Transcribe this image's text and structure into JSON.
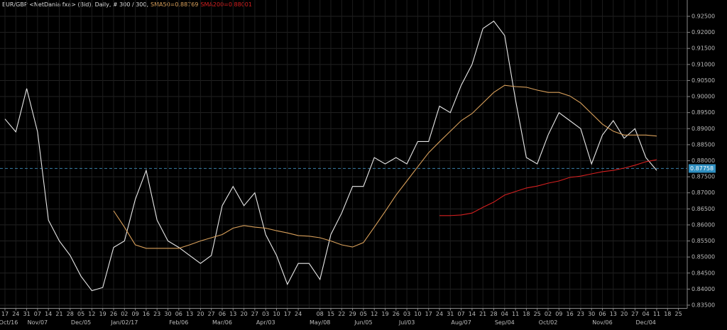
{
  "chart_data": {
    "type": "line",
    "title": "EUR/GBP <NetDania fxa> (Bid), Daily, # 300 / 300,",
    "categories": [
      "17",
      "24",
      "31",
      "07",
      "14",
      "21",
      "28",
      "05",
      "12",
      "19",
      "26",
      "02",
      "09",
      "16",
      "23",
      "30",
      "06",
      "13",
      "20",
      "27",
      "06",
      "13",
      "20",
      "27",
      "03",
      "10",
      "17",
      "24",
      null,
      "08",
      "15",
      "22",
      "29",
      "05",
      "12",
      "19",
      "26",
      "03",
      "10",
      "17",
      "24",
      "31",
      "07",
      "14",
      "21",
      "28",
      "04",
      "11",
      "18",
      "25",
      "02",
      "09",
      "16",
      "23",
      "30",
      "06",
      "13",
      "20",
      "27",
      "04",
      "11",
      "18",
      "25"
    ],
    "month_labels": [
      "Oct/16",
      null,
      null,
      "Nov/07",
      null,
      null,
      null,
      "Dec/05",
      null,
      null,
      null,
      "Jan/02/17",
      null,
      null,
      null,
      null,
      "Feb/06",
      null,
      null,
      null,
      "Mar/06",
      null,
      null,
      null,
      "Apr/03",
      null,
      null,
      null,
      null,
      "May/08",
      null,
      null,
      null,
      "Jun/05",
      null,
      null,
      null,
      "Jul/03",
      null,
      null,
      null,
      null,
      "Aug/07",
      null,
      null,
      null,
      "Sep/04",
      null,
      null,
      null,
      "Oct/02",
      null,
      null,
      null,
      null,
      "Nov/06",
      null,
      null,
      null,
      "Dec/04",
      null,
      null,
      null
    ],
    "series": [
      {
        "color": "#e8e8e8",
        "values": [
          0.893,
          0.889,
          0.9025,
          0.889,
          0.8615,
          0.855,
          0.8505,
          0.844,
          0.8395,
          0.8405,
          0.853,
          0.855,
          0.868,
          0.877,
          0.8615,
          0.855,
          0.853,
          0.8505,
          0.848,
          0.8505,
          0.866,
          0.872,
          0.866,
          0.87,
          0.857,
          0.8505,
          0.8415,
          0.848,
          0.848,
          0.843,
          0.857,
          0.8637,
          0.872,
          0.872,
          0.881,
          0.879,
          0.881,
          0.879,
          0.886,
          0.886,
          0.897,
          0.895,
          0.9035,
          0.91,
          0.9212,
          0.9235,
          0.919,
          0.899,
          0.881,
          0.879,
          0.888,
          0.895,
          0.8925,
          0.89,
          0.879,
          0.888,
          0.8925,
          0.887,
          0.89,
          0.881,
          0.877,
          null,
          null
        ]
      },
      {
        "name": "SMA50=0.88769",
        "color": "#d9a05b",
        "values": [
          null,
          null,
          null,
          null,
          null,
          null,
          null,
          null,
          null,
          null,
          0.8644,
          0.8593,
          0.8538,
          0.8527,
          0.8527,
          0.8527,
          0.8527,
          0.8538,
          0.855,
          0.856,
          0.857,
          0.859,
          0.8598,
          0.8593,
          0.859,
          0.8582,
          0.8575,
          0.8567,
          0.8565,
          0.856,
          0.855,
          0.8538,
          0.8531,
          0.8545,
          0.8593,
          0.8642,
          0.8693,
          0.8737,
          0.8781,
          0.8825,
          0.8859,
          0.8892,
          0.8925,
          0.8947,
          0.898,
          0.9013,
          0.9035,
          0.9031,
          0.9029,
          0.902,
          0.9013,
          0.9013,
          0.9002,
          0.898,
          0.8947,
          0.8914,
          0.8892,
          0.888,
          0.888,
          0.888,
          0.8877,
          null,
          null
        ]
      },
      {
        "name": "SMA200=0.88001",
        "color": "#d42020",
        "values": [
          null,
          null,
          null,
          null,
          null,
          null,
          null,
          null,
          null,
          null,
          null,
          null,
          null,
          null,
          null,
          null,
          null,
          null,
          null,
          null,
          null,
          null,
          null,
          null,
          null,
          null,
          null,
          null,
          null,
          null,
          null,
          null,
          null,
          null,
          null,
          null,
          null,
          null,
          null,
          null,
          0.8629,
          0.8629,
          0.8631,
          0.8637,
          0.8655,
          0.8671,
          0.8693,
          0.8704,
          0.8715,
          0.8721,
          0.873,
          0.8737,
          0.8748,
          0.8752,
          0.8759,
          0.8766,
          0.877,
          0.8777,
          0.8786,
          0.8797,
          0.8803,
          null,
          null
        ]
      }
    ],
    "last_price": {
      "value": 0.87758,
      "label": "0.87758"
    },
    "ylim": [
      0.834,
      0.93
    ],
    "yticks": [
      {
        "value": 0.835,
        "label": "0.83500"
      },
      {
        "value": 0.84,
        "label": "0.84000"
      },
      {
        "value": 0.845,
        "label": "0.84500"
      },
      {
        "value": 0.85,
        "label": "0.85000"
      },
      {
        "value": 0.855,
        "label": "0.85500"
      },
      {
        "value": 0.86,
        "label": "0.86000"
      },
      {
        "value": 0.865,
        "label": "0.86500"
      },
      {
        "value": 0.87,
        "label": "0.87000"
      },
      {
        "value": 0.875,
        "label": "0.87500"
      },
      {
        "value": 0.88,
        "label": "0.88000"
      },
      {
        "value": 0.885,
        "label": "0.88500"
      },
      {
        "value": 0.89,
        "label": "0.89000"
      },
      {
        "value": 0.895,
        "label": "0.89500"
      },
      {
        "value": 0.9,
        "label": "0.90000"
      },
      {
        "value": 0.905,
        "label": "0.90500"
      },
      {
        "value": 0.91,
        "label": "0.91000"
      },
      {
        "value": 0.915,
        "label": "0.91500"
      },
      {
        "value": 0.92,
        "label": "0.92000"
      },
      {
        "value": 0.925,
        "label": "0.92500"
      }
    ],
    "grid": true
  }
}
